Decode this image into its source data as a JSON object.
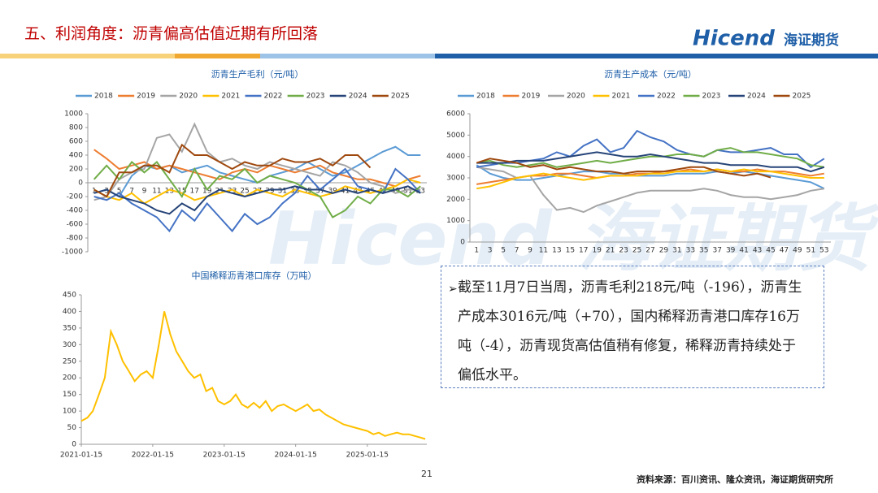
{
  "header": {
    "title": "五、利润角度：沥青偏高估值近期有所回落",
    "logo": "Hicend",
    "logo_cn": "海证期货"
  },
  "watermark": "Hicend 海证期货",
  "chart_data": [
    {
      "type": "line",
      "title": "沥青生产毛利（元/吨）",
      "categories": [
        "1",
        "3",
        "5",
        "7",
        "9",
        "11",
        "13",
        "15",
        "17",
        "19",
        "21",
        "23",
        "25",
        "27",
        "29",
        "31",
        "33",
        "35",
        "37",
        "39",
        "41",
        "43",
        "45",
        "47",
        "49",
        "51",
        "53"
      ],
      "ylim": [
        -1000,
        1000
      ],
      "yticks": [
        -1000,
        -800,
        -600,
        -400,
        -200,
        0,
        200,
        400,
        600,
        800,
        1000
      ],
      "grid": false,
      "legend": "top",
      "series": [
        {
          "name": "2018",
          "color": "#5b9bd5",
          "values": [
            -150,
            -100,
            -200,
            100,
            250,
            200,
            250,
            150,
            200,
            250,
            150,
            100,
            50,
            0,
            100,
            150,
            200,
            300,
            200,
            100,
            150,
            250,
            350,
            450,
            520,
            400,
            400
          ]
        },
        {
          "name": "2019",
          "color": "#ed7d31",
          "values": [
            480,
            350,
            200,
            250,
            300,
            200,
            250,
            200,
            150,
            100,
            50,
            150,
            200,
            150,
            250,
            200,
            150,
            200,
            250,
            150,
            100,
            50,
            50,
            0,
            -50,
            50,
            100
          ]
        },
        {
          "name": "2020",
          "color": "#a5a5a5",
          "values": [
            -250,
            -200,
            50,
            150,
            200,
            650,
            700,
            450,
            850,
            450,
            300,
            350,
            250,
            200,
            300,
            250,
            200,
            150,
            100,
            300,
            250,
            150,
            0,
            -50,
            -150,
            -100,
            -100
          ]
        },
        {
          "name": "2021",
          "color": "#ffc000",
          "values": [
            -100,
            -200,
            -250,
            -150,
            -300,
            -200,
            -100,
            -150,
            -250,
            -200,
            -150,
            -100,
            -200,
            -100,
            -150,
            -200,
            -100,
            -150,
            -200,
            -150,
            -50,
            -100,
            -150,
            -100,
            -50,
            50,
            0
          ]
        },
        {
          "name": "2022",
          "color": "#4472c4",
          "values": [
            -200,
            -250,
            -150,
            -300,
            -400,
            -500,
            -700,
            -400,
            -550,
            -300,
            -500,
            -700,
            -450,
            -600,
            -500,
            -300,
            -150,
            100,
            -100,
            50,
            200,
            -50,
            -100,
            -150,
            200,
            50,
            -150
          ]
        },
        {
          "name": "2023",
          "color": "#70ad47",
          "values": [
            50,
            250,
            50,
            300,
            150,
            300,
            50,
            -200,
            200,
            -100,
            100,
            50,
            200,
            0,
            100,
            50,
            0,
            -100,
            -200,
            -500,
            -400,
            -200,
            -300,
            -100,
            -100,
            -200,
            -50
          ]
        },
        {
          "name": "2024",
          "color": "#264478",
          "values": [
            -150,
            -100,
            -200,
            -250,
            -300,
            -400,
            -450,
            -300,
            -400,
            -200,
            -100,
            -150,
            -200,
            -150,
            -100,
            -100,
            -50,
            -100,
            -100,
            -150,
            -100,
            -150,
            -100,
            -150,
            -100,
            -50,
            -150
          ]
        },
        {
          "name": "2025",
          "color": "#9e480e",
          "values": [
            -100,
            -200,
            150,
            150,
            250,
            250,
            150,
            550,
            400,
            400,
            300,
            200,
            300,
            250,
            250,
            350,
            300,
            300,
            350,
            250,
            400,
            400,
            218,
            null,
            null,
            null,
            null
          ]
        }
      ]
    },
    {
      "type": "line",
      "title": "沥青生产成本（元/吨）",
      "categories": [
        "1",
        "3",
        "5",
        "7",
        "9",
        "11",
        "13",
        "15",
        "17",
        "19",
        "21",
        "23",
        "25",
        "27",
        "29",
        "31",
        "33",
        "35",
        "37",
        "39",
        "41",
        "43",
        "45",
        "47",
        "49",
        "51",
        "53"
      ],
      "ylim": [
        0,
        6000
      ],
      "yticks": [
        0,
        1000,
        2000,
        3000,
        4000,
        5000,
        6000
      ],
      "grid": false,
      "legend": "top",
      "series": [
        {
          "name": "2018",
          "color": "#5b9bd5",
          "values": [
            3600,
            3200,
            3000,
            2900,
            2900,
            3000,
            3100,
            3200,
            3300,
            3300,
            3200,
            3200,
            3100,
            3100,
            3100,
            3200,
            3200,
            3200,
            3300,
            3200,
            3300,
            3200,
            3100,
            3000,
            2900,
            2800,
            2500
          ]
        },
        {
          "name": "2019",
          "color": "#ed7d31",
          "values": [
            2700,
            2800,
            2900,
            3000,
            3100,
            3100,
            3200,
            3200,
            3100,
            3000,
            3100,
            3100,
            3200,
            3200,
            3300,
            3300,
            3400,
            3300,
            3400,
            3300,
            3300,
            3400,
            3300,
            3300,
            3200,
            3100,
            3200
          ]
        },
        {
          "name": "2020",
          "color": "#a5a5a5",
          "values": [
            3500,
            3400,
            3300,
            3000,
            3100,
            2200,
            1500,
            1600,
            1400,
            1700,
            1900,
            2100,
            2300,
            2400,
            2400,
            2400,
            2400,
            2500,
            2400,
            2200,
            2100,
            2100,
            2000,
            2100,
            2200,
            2400,
            2500
          ]
        },
        {
          "name": "2021",
          "color": "#ffc000",
          "values": [
            2500,
            2600,
            2800,
            3000,
            3100,
            3200,
            3100,
            3000,
            2900,
            3000,
            3100,
            3100,
            3100,
            3200,
            3200,
            3300,
            3300,
            3300,
            3400,
            3300,
            3400,
            3300,
            3300,
            3200,
            3100,
            3000,
            3000
          ]
        },
        {
          "name": "2022",
          "color": "#4472c4",
          "values": [
            3500,
            3600,
            3700,
            3700,
            3800,
            3900,
            4200,
            4000,
            4500,
            4800,
            4200,
            4400,
            5200,
            4900,
            4700,
            4300,
            4100,
            4000,
            4300,
            4200,
            4200,
            4300,
            4400,
            4100,
            4100,
            3500,
            3900
          ]
        },
        {
          "name": "2023",
          "color": "#70ad47",
          "values": [
            3700,
            3800,
            3600,
            3500,
            3600,
            3700,
            3500,
            3600,
            3700,
            3800,
            3700,
            3800,
            3900,
            4000,
            4000,
            4100,
            4100,
            4000,
            4300,
            4400,
            4200,
            4200,
            4100,
            4000,
            3900,
            3600,
            3500
          ]
        },
        {
          "name": "2024",
          "color": "#264478",
          "values": [
            3700,
            3700,
            3700,
            3800,
            3800,
            3800,
            3900,
            4000,
            4100,
            4200,
            4100,
            4000,
            4000,
            4100,
            4000,
            3900,
            3800,
            3700,
            3700,
            3600,
            3600,
            3600,
            3500,
            3500,
            3500,
            3300,
            3500
          ]
        },
        {
          "name": "2025",
          "color": "#9e480e",
          "values": [
            3700,
            3900,
            3800,
            3700,
            3500,
            3600,
            3400,
            3500,
            3400,
            3300,
            3300,
            3200,
            3300,
            3300,
            3300,
            3400,
            3500,
            3500,
            3300,
            3200,
            3100,
            3200,
            3016,
            null,
            null,
            null,
            null
          ]
        }
      ]
    },
    {
      "type": "timeline",
      "title": "中国稀释沥青港口库存（万吨）",
      "color": "#ffc000",
      "x": [
        "2021-01-15",
        "2021-02-15",
        "2021-03-15",
        "2021-04-15",
        "2021-05-15",
        "2021-06-15",
        "2021-07-15",
        "2021-08-15",
        "2021-09-15",
        "2021-10-15",
        "2021-11-15",
        "2021-12-15",
        "2022-01-15",
        "2022-02-15",
        "2022-03-15",
        "2022-04-15",
        "2022-05-15",
        "2022-06-15",
        "2022-07-15",
        "2022-08-15",
        "2022-09-15",
        "2022-10-15",
        "2022-11-15",
        "2022-12-15",
        "2023-01-15",
        "2023-02-15",
        "2023-03-15",
        "2023-04-15",
        "2023-05-15",
        "2023-06-15",
        "2023-07-15",
        "2023-08-15",
        "2023-09-15",
        "2023-10-15",
        "2023-11-15",
        "2023-12-15",
        "2024-01-15",
        "2024-02-15",
        "2024-03-15",
        "2024-04-15",
        "2024-05-15",
        "2024-06-15",
        "2024-07-15",
        "2024-08-15",
        "2024-09-15",
        "2024-10-15",
        "2024-11-15",
        "2024-12-15",
        "2025-01-15",
        "2025-02-15",
        "2025-03-15",
        "2025-04-15",
        "2025-05-15",
        "2025-06-15",
        "2025-07-15",
        "2025-08-15",
        "2025-09-15",
        "2025-10-15",
        "2025-11-07"
      ],
      "values": [
        70,
        80,
        100,
        150,
        200,
        340,
        300,
        250,
        220,
        190,
        210,
        220,
        200,
        300,
        400,
        330,
        280,
        250,
        220,
        200,
        210,
        160,
        170,
        130,
        120,
        130,
        150,
        120,
        110,
        125,
        110,
        130,
        100,
        115,
        120,
        110,
        100,
        110,
        120,
        100,
        105,
        90,
        80,
        70,
        60,
        55,
        50,
        45,
        40,
        30,
        35,
        25,
        30,
        35,
        30,
        30,
        25,
        20,
        16
      ],
      "xlim": [
        "2021-01-15",
        "2025-11-15"
      ],
      "xticks": [
        "2021-01-15",
        "2022-01-15",
        "2023-01-15",
        "2024-01-15",
        "2025-01-15"
      ],
      "ylim": [
        0,
        450
      ],
      "yticks": [
        0,
        50,
        100,
        150,
        200,
        250,
        300,
        350,
        400,
        450
      ],
      "grid": false
    }
  ],
  "note": "截至11月7日当周，沥青毛利218元/吨（-196），沥青生产成本3016元/吨（+70），国内稀释沥青港口库存16万吨（-4），沥青现货高估值稍有修复，稀释沥青持续处于偏低水平。",
  "page_number": "21",
  "source": "资料来源：百川资讯、隆众资讯，海证期货研究所"
}
